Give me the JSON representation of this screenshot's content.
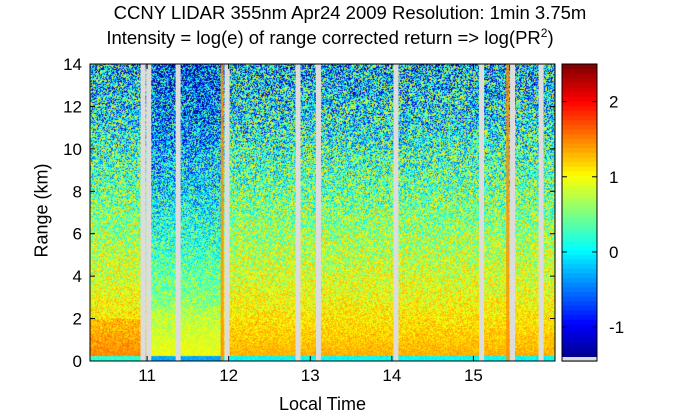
{
  "title_line1": "CCNY LIDAR 355nm Apr24 2009 Resolution: 1min 3.75m",
  "title_line2_prefix": "Intensity = log(e) of range corrected return => log(PR",
  "title_line2_sup": "2",
  "title_line2_suffix": ")",
  "chart_data": {
    "type": "heatmap",
    "xlabel": "Local Time",
    "ylabel": "Range (km)",
    "xlim": [
      10.3,
      16.0
    ],
    "ylim": [
      0,
      14
    ],
    "xticks": [
      11,
      12,
      13,
      14,
      15
    ],
    "yticks": [
      0,
      2,
      4,
      6,
      8,
      10,
      12,
      14
    ],
    "colorbar": {
      "range": [
        -1.45,
        2.5
      ],
      "ticks": [
        -1,
        0,
        1,
        2
      ],
      "colormap": "jet"
    },
    "data_gaps_local_time": [
      10.95,
      11.02,
      11.38,
      11.98,
      12.85,
      13.1,
      14.05,
      15.1,
      15.48,
      15.83
    ],
    "cloud_streaks_local_time": [
      11.92,
      15.42
    ],
    "boundary_layer_top_km": 2.8
  }
}
